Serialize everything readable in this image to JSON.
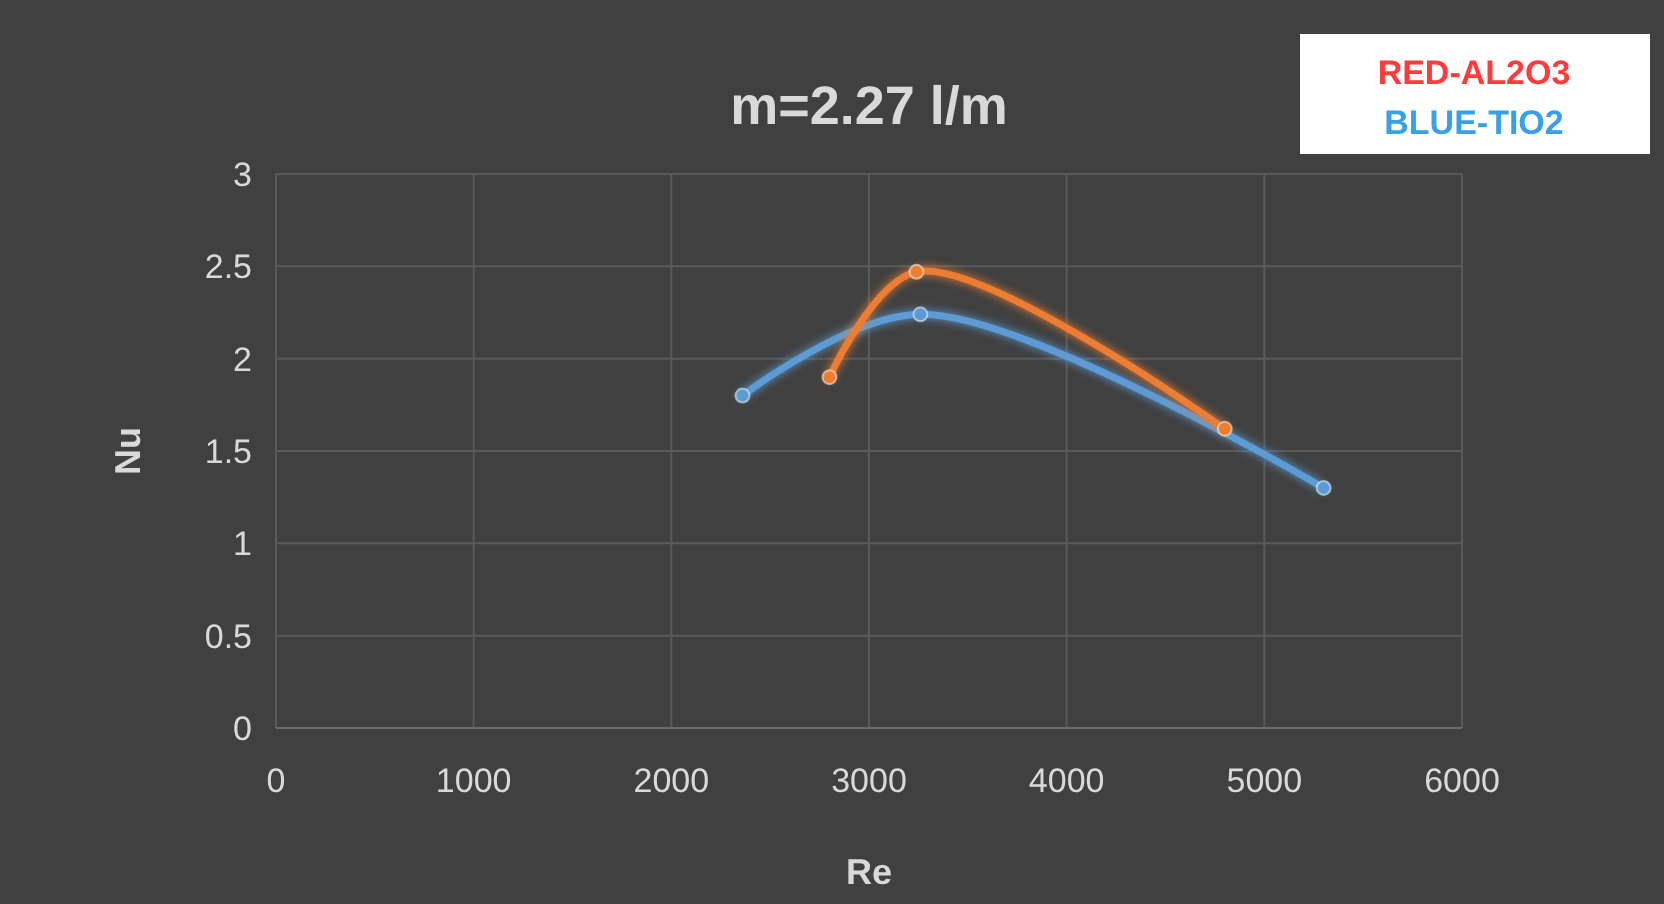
{
  "chart_data": {
    "type": "line",
    "title": "m=2.27 l/m",
    "xlabel": "Re",
    "ylabel": "Nu",
    "xlim": [
      0,
      6000
    ],
    "xticks": [
      0,
      1000,
      2000,
      3000,
      4000,
      5000,
      6000
    ],
    "ylim": [
      0,
      3
    ],
    "yticks": [
      0,
      0.5,
      1,
      1.5,
      2,
      2.5,
      3
    ],
    "grid": true,
    "marker": "circle",
    "line_style": "solid",
    "annotations": [
      "RED-AL2O3",
      "BLUE-TIO2"
    ],
    "series": [
      {
        "color": "#5b9bd5",
        "x": [
          2360,
          3260,
          5300
        ],
        "values": [
          1.8,
          2.24,
          1.3
        ]
      },
      {
        "color": "#ed7d31",
        "x": [
          2800,
          3240,
          4800
        ],
        "values": [
          1.9,
          2.47,
          1.62
        ]
      }
    ]
  }
}
